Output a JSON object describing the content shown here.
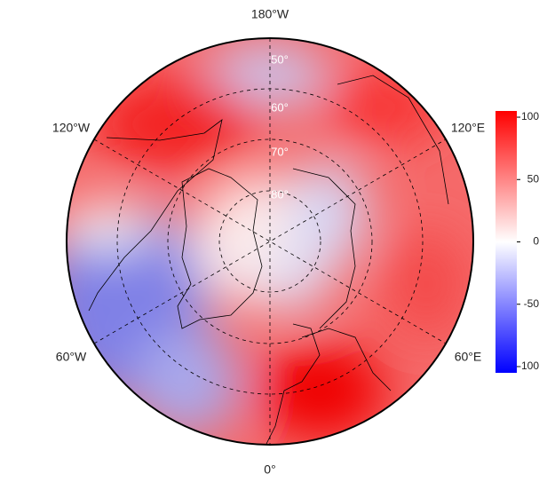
{
  "chart_data": {
    "type": "polar-map",
    "lon_labels": [
      "180°W",
      "120°W",
      "120°E",
      "60°W",
      "60°E",
      "0°"
    ],
    "lat_labels": [
      "50°",
      "60°",
      "70°",
      "80°"
    ],
    "colorbar_lim": [
      -105,
      105
    ],
    "colorbar_ticks": [
      100,
      50,
      0,
      -50,
      -100
    ]
  }
}
